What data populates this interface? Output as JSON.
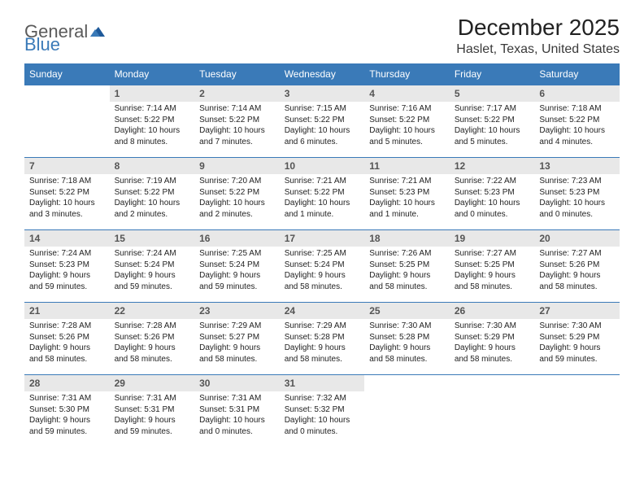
{
  "logo": {
    "general": "General",
    "blue": "Blue"
  },
  "title": {
    "month": "December 2025",
    "location": "Haslet, Texas, United States"
  },
  "colors": {
    "header_bg": "#3a7ab8",
    "header_text": "#ffffff",
    "daynum_bg": "#e8e8e8",
    "daynum_text": "#555555",
    "body_text": "#222222",
    "logo_gray": "#5a5a5a",
    "logo_blue": "#3a7ab8",
    "border": "#3a7ab8"
  },
  "weekdays": [
    "Sunday",
    "Monday",
    "Tuesday",
    "Wednesday",
    "Thursday",
    "Friday",
    "Saturday"
  ],
  "weeks": [
    [
      {
        "n": "",
        "sunrise": "",
        "sunset": "",
        "daylight": ""
      },
      {
        "n": "1",
        "sunrise": "Sunrise: 7:14 AM",
        "sunset": "Sunset: 5:22 PM",
        "daylight": "Daylight: 10 hours and 8 minutes."
      },
      {
        "n": "2",
        "sunrise": "Sunrise: 7:14 AM",
        "sunset": "Sunset: 5:22 PM",
        "daylight": "Daylight: 10 hours and 7 minutes."
      },
      {
        "n": "3",
        "sunrise": "Sunrise: 7:15 AM",
        "sunset": "Sunset: 5:22 PM",
        "daylight": "Daylight: 10 hours and 6 minutes."
      },
      {
        "n": "4",
        "sunrise": "Sunrise: 7:16 AM",
        "sunset": "Sunset: 5:22 PM",
        "daylight": "Daylight: 10 hours and 5 minutes."
      },
      {
        "n": "5",
        "sunrise": "Sunrise: 7:17 AM",
        "sunset": "Sunset: 5:22 PM",
        "daylight": "Daylight: 10 hours and 5 minutes."
      },
      {
        "n": "6",
        "sunrise": "Sunrise: 7:18 AM",
        "sunset": "Sunset: 5:22 PM",
        "daylight": "Daylight: 10 hours and 4 minutes."
      }
    ],
    [
      {
        "n": "7",
        "sunrise": "Sunrise: 7:18 AM",
        "sunset": "Sunset: 5:22 PM",
        "daylight": "Daylight: 10 hours and 3 minutes."
      },
      {
        "n": "8",
        "sunrise": "Sunrise: 7:19 AM",
        "sunset": "Sunset: 5:22 PM",
        "daylight": "Daylight: 10 hours and 2 minutes."
      },
      {
        "n": "9",
        "sunrise": "Sunrise: 7:20 AM",
        "sunset": "Sunset: 5:22 PM",
        "daylight": "Daylight: 10 hours and 2 minutes."
      },
      {
        "n": "10",
        "sunrise": "Sunrise: 7:21 AM",
        "sunset": "Sunset: 5:22 PM",
        "daylight": "Daylight: 10 hours and 1 minute."
      },
      {
        "n": "11",
        "sunrise": "Sunrise: 7:21 AM",
        "sunset": "Sunset: 5:23 PM",
        "daylight": "Daylight: 10 hours and 1 minute."
      },
      {
        "n": "12",
        "sunrise": "Sunrise: 7:22 AM",
        "sunset": "Sunset: 5:23 PM",
        "daylight": "Daylight: 10 hours and 0 minutes."
      },
      {
        "n": "13",
        "sunrise": "Sunrise: 7:23 AM",
        "sunset": "Sunset: 5:23 PM",
        "daylight": "Daylight: 10 hours and 0 minutes."
      }
    ],
    [
      {
        "n": "14",
        "sunrise": "Sunrise: 7:24 AM",
        "sunset": "Sunset: 5:23 PM",
        "daylight": "Daylight: 9 hours and 59 minutes."
      },
      {
        "n": "15",
        "sunrise": "Sunrise: 7:24 AM",
        "sunset": "Sunset: 5:24 PM",
        "daylight": "Daylight: 9 hours and 59 minutes."
      },
      {
        "n": "16",
        "sunrise": "Sunrise: 7:25 AM",
        "sunset": "Sunset: 5:24 PM",
        "daylight": "Daylight: 9 hours and 59 minutes."
      },
      {
        "n": "17",
        "sunrise": "Sunrise: 7:25 AM",
        "sunset": "Sunset: 5:24 PM",
        "daylight": "Daylight: 9 hours and 58 minutes."
      },
      {
        "n": "18",
        "sunrise": "Sunrise: 7:26 AM",
        "sunset": "Sunset: 5:25 PM",
        "daylight": "Daylight: 9 hours and 58 minutes."
      },
      {
        "n": "19",
        "sunrise": "Sunrise: 7:27 AM",
        "sunset": "Sunset: 5:25 PM",
        "daylight": "Daylight: 9 hours and 58 minutes."
      },
      {
        "n": "20",
        "sunrise": "Sunrise: 7:27 AM",
        "sunset": "Sunset: 5:26 PM",
        "daylight": "Daylight: 9 hours and 58 minutes."
      }
    ],
    [
      {
        "n": "21",
        "sunrise": "Sunrise: 7:28 AM",
        "sunset": "Sunset: 5:26 PM",
        "daylight": "Daylight: 9 hours and 58 minutes."
      },
      {
        "n": "22",
        "sunrise": "Sunrise: 7:28 AM",
        "sunset": "Sunset: 5:26 PM",
        "daylight": "Daylight: 9 hours and 58 minutes."
      },
      {
        "n": "23",
        "sunrise": "Sunrise: 7:29 AM",
        "sunset": "Sunset: 5:27 PM",
        "daylight": "Daylight: 9 hours and 58 minutes."
      },
      {
        "n": "24",
        "sunrise": "Sunrise: 7:29 AM",
        "sunset": "Sunset: 5:28 PM",
        "daylight": "Daylight: 9 hours and 58 minutes."
      },
      {
        "n": "25",
        "sunrise": "Sunrise: 7:30 AM",
        "sunset": "Sunset: 5:28 PM",
        "daylight": "Daylight: 9 hours and 58 minutes."
      },
      {
        "n": "26",
        "sunrise": "Sunrise: 7:30 AM",
        "sunset": "Sunset: 5:29 PM",
        "daylight": "Daylight: 9 hours and 58 minutes."
      },
      {
        "n": "27",
        "sunrise": "Sunrise: 7:30 AM",
        "sunset": "Sunset: 5:29 PM",
        "daylight": "Daylight: 9 hours and 59 minutes."
      }
    ],
    [
      {
        "n": "28",
        "sunrise": "Sunrise: 7:31 AM",
        "sunset": "Sunset: 5:30 PM",
        "daylight": "Daylight: 9 hours and 59 minutes."
      },
      {
        "n": "29",
        "sunrise": "Sunrise: 7:31 AM",
        "sunset": "Sunset: 5:31 PM",
        "daylight": "Daylight: 9 hours and 59 minutes."
      },
      {
        "n": "30",
        "sunrise": "Sunrise: 7:31 AM",
        "sunset": "Sunset: 5:31 PM",
        "daylight": "Daylight: 10 hours and 0 minutes."
      },
      {
        "n": "31",
        "sunrise": "Sunrise: 7:32 AM",
        "sunset": "Sunset: 5:32 PM",
        "daylight": "Daylight: 10 hours and 0 minutes."
      },
      {
        "n": "",
        "sunrise": "",
        "sunset": "",
        "daylight": ""
      },
      {
        "n": "",
        "sunrise": "",
        "sunset": "",
        "daylight": ""
      },
      {
        "n": "",
        "sunrise": "",
        "sunset": "",
        "daylight": ""
      }
    ]
  ]
}
